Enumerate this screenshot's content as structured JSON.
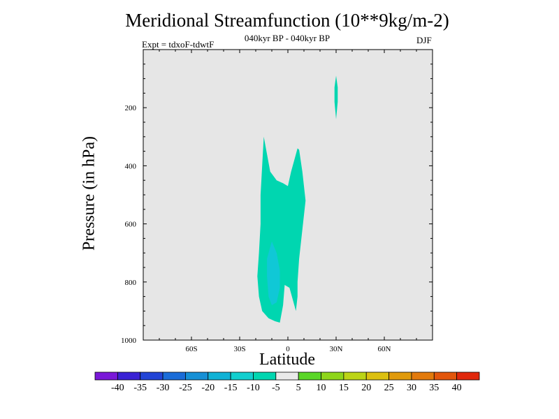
{
  "chart_data": {
    "type": "contour",
    "title": "Meridional Streamfunction (10**9kg/m-2)",
    "subtitle": "040kyr BP - 040kyr BP",
    "experiment": "Expt = tdxoF-tdwtF",
    "season": "DJF",
    "xlabel": "Latitude",
    "ylabel": "Pressure (in hPa)",
    "xlim": [
      -90,
      90
    ],
    "ylim": [
      1000,
      0
    ],
    "y_inverted": true,
    "x_ticks": [
      {
        "value": -60,
        "label": "60S"
      },
      {
        "value": -30,
        "label": "30S"
      },
      {
        "value": 0,
        "label": "0"
      },
      {
        "value": 30,
        "label": "30N"
      },
      {
        "value": 60,
        "label": "60N"
      }
    ],
    "y_ticks": [
      {
        "value": 200,
        "label": "200"
      },
      {
        "value": 400,
        "label": "400"
      },
      {
        "value": 600,
        "label": "600"
      },
      {
        "value": 800,
        "label": "800"
      },
      {
        "value": 1000,
        "label": "1000"
      }
    ],
    "background_color": "#e6e6e6",
    "colorbar": {
      "labels": [
        "-40",
        "-35",
        "-30",
        "-25",
        "-20",
        "-15",
        "-10",
        "-5",
        "5",
        "10",
        "15",
        "20",
        "25",
        "30",
        "35",
        "40"
      ],
      "colors": [
        "#7a18d8",
        "#3a22d4",
        "#2244d6",
        "#1a6cd8",
        "#1690d6",
        "#10b2d6",
        "#12cfcf",
        "#00d6b0",
        "#eaeaea",
        "#5ad628",
        "#8ed61a",
        "#bcd416",
        "#dcc010",
        "#e09a0c",
        "#e27a0c",
        "#e2560c",
        "#e0280c"
      ]
    },
    "regions": [
      {
        "name": "band-10-to-5",
        "level": "-10 to -5",
        "color": "#00d6b0",
        "polygon": [
          [
            -15,
            300
          ],
          [
            -11,
            420
          ],
          [
            -7,
            450
          ],
          [
            -3,
            460
          ],
          [
            0,
            470
          ],
          [
            2,
            420
          ],
          [
            4,
            380
          ],
          [
            6,
            340
          ],
          [
            7,
            345
          ],
          [
            9,
            420
          ],
          [
            11,
            520
          ],
          [
            9,
            620
          ],
          [
            7,
            720
          ],
          [
            6,
            800
          ],
          [
            6,
            850
          ],
          [
            5,
            900
          ],
          [
            3,
            860
          ],
          [
            1,
            820
          ],
          [
            -2,
            810
          ],
          [
            -3,
            880
          ],
          [
            -5,
            940
          ],
          [
            -8,
            935
          ],
          [
            -12,
            925
          ],
          [
            -16,
            900
          ],
          [
            -18,
            850
          ],
          [
            -19,
            780
          ],
          [
            -18,
            700
          ],
          [
            -17,
            600
          ],
          [
            -17,
            500
          ],
          [
            -16,
            400
          ]
        ]
      },
      {
        "name": "band-10-to-5-upper",
        "level": "-10 to -5",
        "color": "#00d6b0",
        "polygon": [
          [
            30,
            90
          ],
          [
            31,
            130
          ],
          [
            31,
            180
          ],
          [
            30,
            240
          ],
          [
            29,
            180
          ],
          [
            29,
            130
          ]
        ]
      },
      {
        "name": "band-15-to-10",
        "level": "-15 to -10",
        "color": "#10c8d6",
        "polygon": [
          [
            -10,
            660
          ],
          [
            -7,
            700
          ],
          [
            -5,
            760
          ],
          [
            -5,
            820
          ],
          [
            -7,
            870
          ],
          [
            -10,
            880
          ],
          [
            -12,
            850
          ],
          [
            -13,
            780
          ],
          [
            -13,
            720
          ]
        ]
      }
    ]
  }
}
